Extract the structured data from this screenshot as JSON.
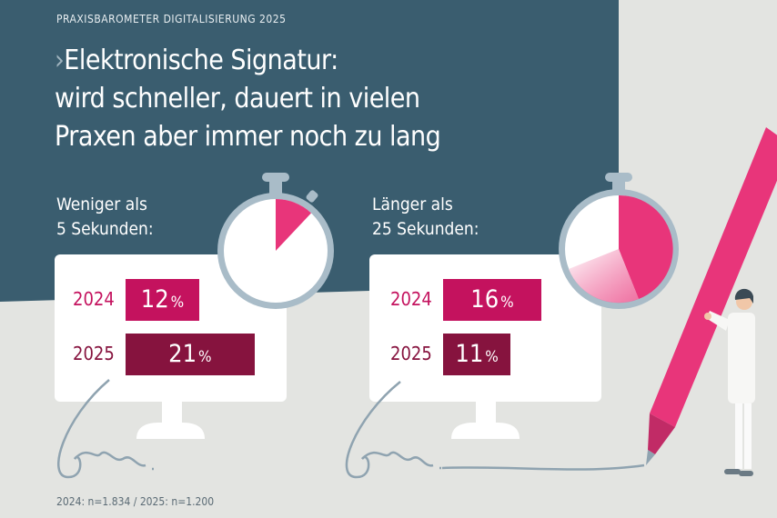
{
  "header": {
    "kicker": "PRAXISBAROMETER DIGITALISIERUNG 2025",
    "title_chevron": "›",
    "title_lines": [
      "Elektronische Signatur:",
      "wird schneller, dauert in vielen",
      "Praxen aber immer noch zu lang"
    ]
  },
  "colors": {
    "header_bg": "#3a5d6f",
    "bar_2024": "#c4125e",
    "bar_2025": "#86133e",
    "accent_pink": "#e8357a",
    "ring": "#a9bcc8"
  },
  "chart_data": [
    {
      "type": "bar",
      "title_lines": [
        "Weniger als",
        "5 Sekunden:"
      ],
      "categories": [
        "2024",
        "2025"
      ],
      "values": [
        12,
        21
      ],
      "unit": "%"
    },
    {
      "type": "bar",
      "title_lines": [
        "Länger als",
        "25 Sekunden:"
      ],
      "categories": [
        "2024",
        "2025"
      ],
      "values": [
        16,
        11
      ],
      "unit": "%"
    }
  ],
  "footnote": "2024: n=1.834  /  2025: n=1.200"
}
